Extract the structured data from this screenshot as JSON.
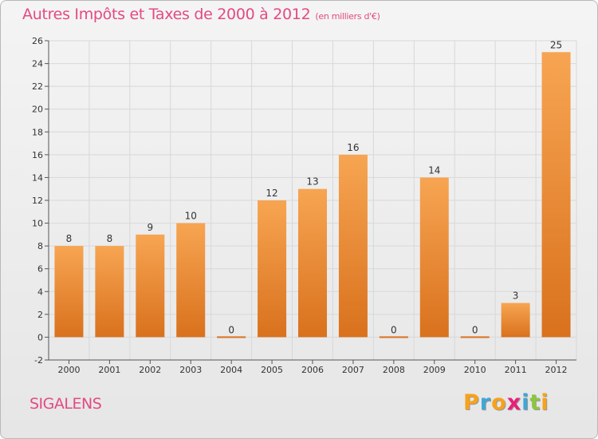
{
  "title": "Autres Impôts et Taxes de 2000 à 2012",
  "unit_note": "(en milliers d'€)",
  "place": "SIGALENS",
  "logo": {
    "letters": [
      "P",
      "r",
      "o",
      "x",
      "i",
      "t",
      "i"
    ],
    "colors": [
      "#f7a21b",
      "#3fa7d6",
      "#f7a21b",
      "#e8207a",
      "#3fa7d6",
      "#8cc63f",
      "#f7a21b"
    ]
  },
  "colors": {
    "title": "#e34a83",
    "bar_light": "#f7a552",
    "bar_dark": "#d9711d",
    "axis": "#555555",
    "grid": "#d8d8d8"
  },
  "chart_data": {
    "type": "bar",
    "categories": [
      "2000",
      "2001",
      "2002",
      "2003",
      "2004",
      "2005",
      "2006",
      "2007",
      "2008",
      "2009",
      "2010",
      "2011",
      "2012"
    ],
    "values": [
      8,
      8,
      9,
      10,
      0,
      12,
      13,
      16,
      0,
      14,
      0,
      3,
      25
    ],
    "ylim": [
      -2,
      26
    ],
    "yticks": [
      -2,
      0,
      2,
      4,
      6,
      8,
      10,
      12,
      14,
      16,
      18,
      20,
      22,
      24,
      26
    ],
    "grid": true,
    "xlabel": "",
    "ylabel": ""
  }
}
